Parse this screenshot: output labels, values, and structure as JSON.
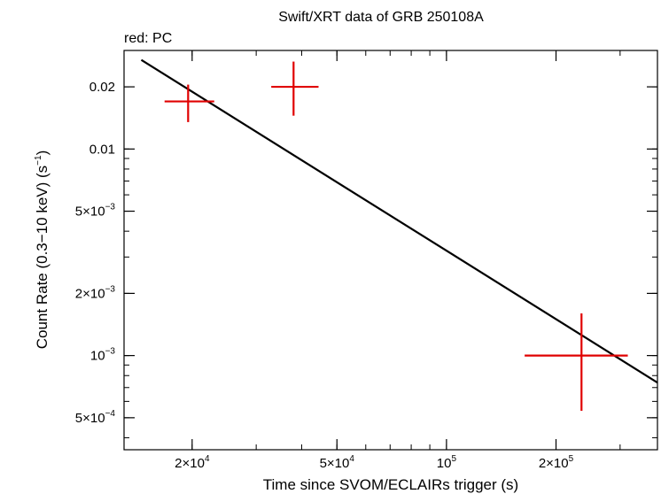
{
  "chart_data": {
    "type": "scatter",
    "title": "Swift/XRT data of GRB 250108A",
    "subtitle": "red: PC",
    "xlabel": "Time since SVOM/ECLAIRs trigger (s)",
    "ylabel": {
      "prefix": "Count Rate (0.3−10 keV) (s",
      "exponent": "−1",
      "suffix": ")"
    },
    "xscale": "log",
    "yscale": "log",
    "xlim": [
      13000,
      380000
    ],
    "ylim": [
      0.00035,
      0.03
    ],
    "x_ticks": [
      {
        "value": 20000,
        "mantissa": "2×10",
        "exponent": "4"
      },
      {
        "value": 50000,
        "mantissa": "5×10",
        "exponent": "4"
      },
      {
        "value": 100000,
        "mantissa": "10",
        "exponent": "5"
      },
      {
        "value": 200000,
        "mantissa": "2×10",
        "exponent": "5"
      }
    ],
    "y_ticks": [
      {
        "value": 0.02,
        "mantissa": "0.02",
        "exponent": ""
      },
      {
        "value": 0.01,
        "mantissa": "0.01",
        "exponent": ""
      },
      {
        "value": 0.005,
        "mantissa": "5×10",
        "exponent": "−3"
      },
      {
        "value": 0.002,
        "mantissa": "2×10",
        "exponent": "−3"
      },
      {
        "value": 0.001,
        "mantissa": "10",
        "exponent": "−3"
      },
      {
        "value": 0.0005,
        "mantissa": "5×10",
        "exponent": "−4"
      }
    ],
    "series": [
      {
        "name": "PC",
        "color": "#e00000",
        "points": [
          {
            "x": 19500,
            "x_lo": 16800,
            "x_hi": 23000,
            "y": 0.017,
            "y_lo": 0.0135,
            "y_hi": 0.0205
          },
          {
            "x": 38000,
            "x_lo": 33000,
            "x_hi": 44500,
            "y": 0.02,
            "y_lo": 0.0145,
            "y_hi": 0.0265
          },
          {
            "x": 235000,
            "x_lo": 164000,
            "x_hi": 315000,
            "y": 0.001,
            "y_lo": 0.00054,
            "y_hi": 0.0016
          }
        ]
      }
    ],
    "model": {
      "name": "power-law fit",
      "color": "#000000",
      "points": [
        {
          "x": 14500,
          "y": 0.027
        },
        {
          "x": 380000,
          "y": 0.00074
        }
      ]
    }
  }
}
